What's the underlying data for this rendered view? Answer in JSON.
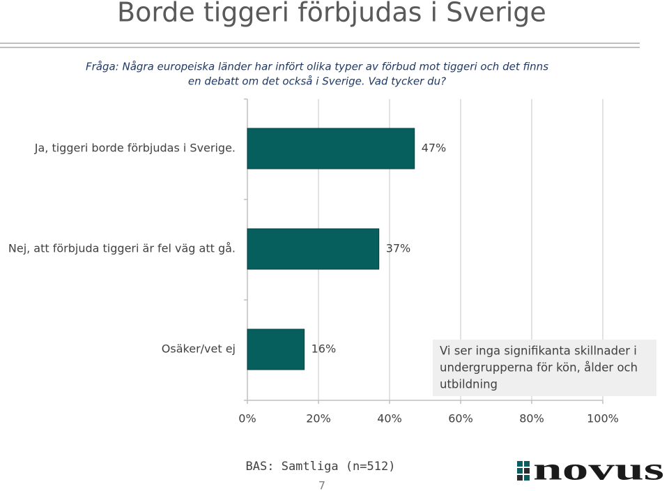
{
  "chart_data": {
    "type": "bar",
    "orientation": "horizontal",
    "title": "Borde tiggeri förbjudas i Sverige",
    "question": [
      "Fråga: Några europeiska länder har infört olika typer av förbud mot tiggeri och det finns",
      "en debatt om det också i Sverige. Vad tycker du?"
    ],
    "categories": [
      "Ja, tiggeri borde förbjudas i Sverige.",
      "Nej, att förbjuda tiggeri är fel väg att gå.",
      "Osäker/vet ej"
    ],
    "values": [
      47,
      37,
      16
    ],
    "value_labels": [
      "47%",
      "37%",
      "16%"
    ],
    "color": "#065f5d",
    "xlim": [
      0,
      100
    ],
    "xticks": [
      {
        "value": 0,
        "label": "0%"
      },
      {
        "value": 20,
        "label": "20%"
      },
      {
        "value": 40,
        "label": "40%"
      },
      {
        "value": 60,
        "label": "60%"
      },
      {
        "value": 80,
        "label": "80%"
      },
      {
        "value": 100,
        "label": "100%"
      }
    ],
    "grid": true,
    "note": [
      "Vi ser inga signifikanta skillnader i",
      "undergrupperna för kön, ålder och",
      "utbildning"
    ],
    "base": "BAS: Samtliga (n=512)",
    "page_number": "7",
    "logo": "novus"
  }
}
